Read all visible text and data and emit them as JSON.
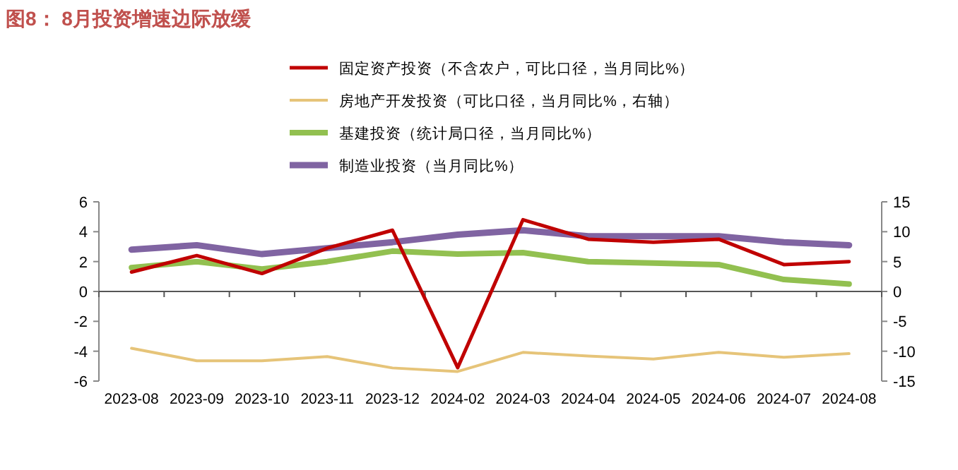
{
  "chart_data": {
    "type": "line",
    "title": "图8：  8月投资增速边际放缓",
    "categories": [
      "2023-08",
      "2023-09",
      "2023-10",
      "2023-11",
      "2023-12",
      "2024-02",
      "2024-03",
      "2024-04",
      "2024-05",
      "2024-06",
      "2024-07",
      "2024-08"
    ],
    "series": [
      {
        "name": "固定资产投资（不含农户，可比口径，当月同比%）",
        "color": "#c00000",
        "values": [
          1.3,
          2.4,
          1.2,
          2.9,
          4.1,
          -5.1,
          4.8,
          3.5,
          3.3,
          3.5,
          1.8,
          2.0
        ]
      },
      {
        "name": "房地产开发投资（可比口径，当月同比%，右轴）",
        "color": "#e6c479",
        "axis": "y2",
        "values": [
          -9.5,
          -11.6,
          -11.6,
          -10.9,
          -12.8,
          -13.4,
          -10.2,
          -10.8,
          -11.3,
          -10.2,
          -11.0,
          -10.4
        ]
      },
      {
        "name": "基建投资（统计局口径，当月同比%）",
        "color": "#92c050",
        "values": [
          1.6,
          2.0,
          1.5,
          2.0,
          2.7,
          2.5,
          2.6,
          2.0,
          1.9,
          1.8,
          0.8,
          0.5
        ]
      },
      {
        "name": "制造业投资（当月同比%）",
        "color": "#8064a2",
        "values": [
          2.8,
          3.1,
          2.5,
          2.9,
          3.3,
          3.8,
          4.1,
          3.7,
          3.7,
          3.7,
          3.3,
          3.1
        ]
      }
    ],
    "ylim": [
      -6,
      6
    ],
    "yticks": [
      -6,
      -4,
      -2,
      0,
      2,
      4,
      6
    ],
    "y2lim": [
      -15,
      15
    ],
    "y2ticks": [
      -15,
      -10,
      -5,
      0,
      5,
      10,
      15
    ],
    "legend": "top"
  }
}
